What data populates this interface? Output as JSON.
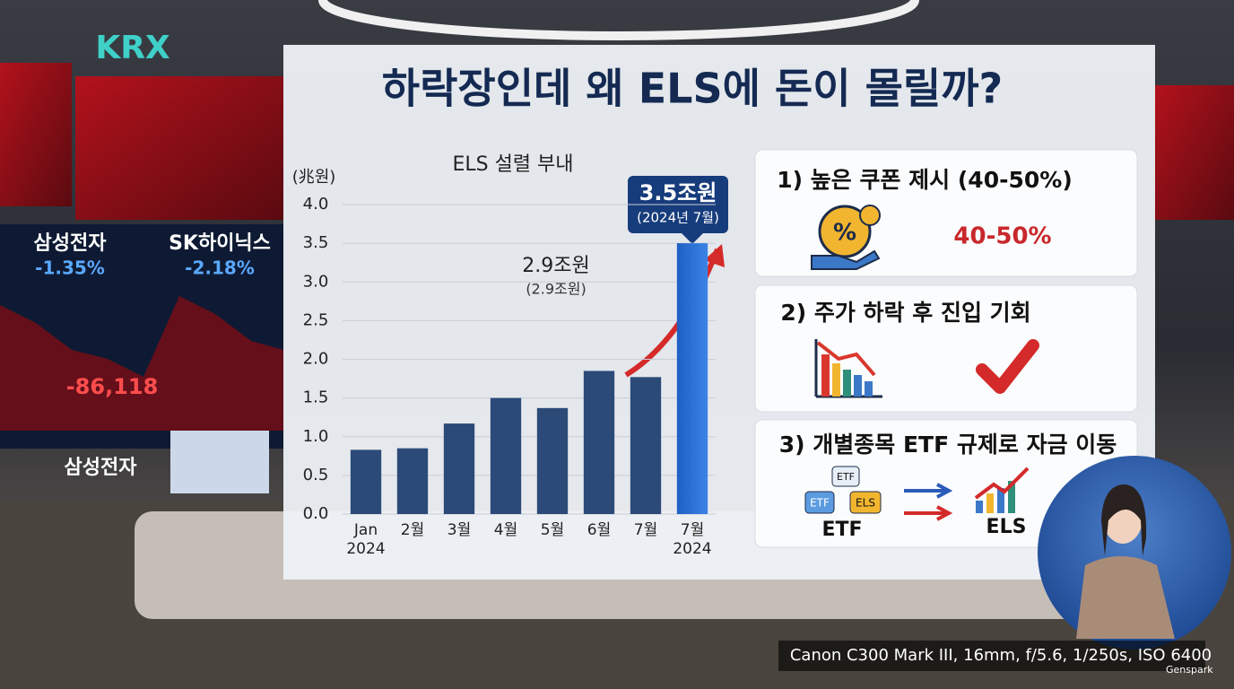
{
  "background": {
    "logo": "KRX",
    "screen_left_name": "삼성전자",
    "screen_left_change": "-1.35%",
    "screen_right_name": "SK하이닉스",
    "screen_right_change": "-2.18%",
    "screen_number": "-86,118",
    "desk_sign": "삼성전자"
  },
  "header": {
    "title": "하락장인데 왜 ELS에 돈이 몰릴까?"
  },
  "chart_data": {
    "type": "bar",
    "title": "ELS 설렬 부내",
    "y_label": "(兆원)",
    "categories": [
      "Jan\n2024",
      "2월",
      "3월",
      "4월",
      "5월",
      "6월",
      "7월",
      "7월\n2024"
    ],
    "values": [
      0.83,
      0.85,
      1.17,
      1.5,
      1.37,
      1.85,
      1.77,
      3.5
    ],
    "colors": [
      "#2b4a78",
      "#2b4a78",
      "#2b4a78",
      "#2b4a78",
      "#2b4a78",
      "#2b4a78",
      "#2b4a78",
      "#1f63c9"
    ],
    "ylim": [
      0,
      4
    ],
    "yticks": [
      {
        "value": 0,
        "label": "0.0"
      },
      {
        "value": 0.5,
        "label": "0.5"
      },
      {
        "value": 1,
        "label": "1.0"
      },
      {
        "value": 1.5,
        "label": "1.5"
      },
      {
        "value": 2,
        "label": "2.0"
      },
      {
        "value": 2.5,
        "label": "2.5"
      },
      {
        "value": 3,
        "label": "3.0"
      },
      {
        "value": 3.5,
        "label": "3.5"
      },
      {
        "value": 4,
        "label": "4.0"
      }
    ],
    "grid": true,
    "annotations": [
      "3.5조원",
      "(2024년 7월)",
      "2.9조원",
      "(2.9조원)"
    ]
  },
  "panels": [
    {
      "title": "1) 높은 쿠폰 제시 (40-50%)",
      "highlight": "40-50%"
    },
    {
      "title": "2) 주가 하락 후 진입 기회"
    },
    {
      "title": "3) 개별종목 ETF 규제로 자금 이동",
      "icon_labels": [
        "ETF",
        "ETF",
        "ELS"
      ],
      "from": "ETF",
      "to": "ELS"
    }
  ],
  "caption": "Canon C300 Mark III, 16mm, f/5.6, 1/250s, ISO 6400",
  "watermark": "Genspark"
}
